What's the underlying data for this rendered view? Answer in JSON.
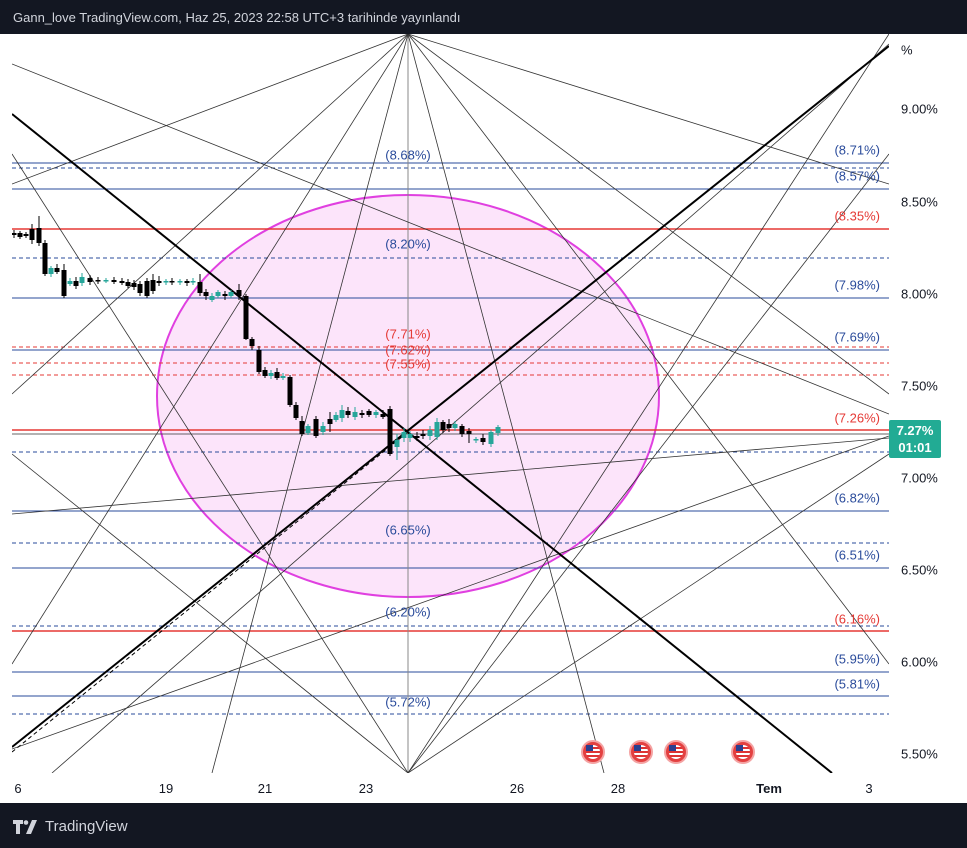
{
  "header": {
    "title": "Gann_love TradingView.com, Haz 25, 2023 22:58 UTC+3 tarihinde yayınlandı"
  },
  "footer": {
    "brand": "TradingView",
    "logo_icon": "tradingview-logo-icon"
  },
  "price_axis": {
    "unit_label": "%",
    "ticks": [
      "9.00%",
      "8.50%",
      "8.00%",
      "7.50%",
      "7.00%",
      "6.50%",
      "6.00%",
      "5.50%"
    ]
  },
  "time_axis": {
    "ticks": [
      "6",
      "19",
      "21",
      "23",
      "26",
      "28",
      "Tem",
      "3"
    ]
  },
  "last_price": {
    "value": "7.27%",
    "countdown": "01:01",
    "color": "#22ab94"
  },
  "levels": {
    "center_column": [
      "(8.68%)",
      "(8.20%)",
      "(7.71%)",
      "(7.62%)",
      "(7.55%)",
      "(6.65%)",
      "(6.20%)",
      "(5.72%)"
    ],
    "right_column": [
      "(8.71%)",
      "(8.57%)",
      "(8.35%)",
      "(7.98%)",
      "(7.69%)",
      "(7.26%)",
      "(6.82%)",
      "(6.51%)",
      "(6.16%)",
      "(5.95%)",
      "(5.81%)"
    ]
  },
  "events": {
    "icon": "us-flag-icon",
    "count": 4
  },
  "colors": {
    "background_dark": "#131722",
    "blue_level": "#2a4b9b",
    "red_level": "#e53935",
    "ellipse_stroke": "#e040e0",
    "ellipse_fill": "#fce4fa",
    "candle_up": "#26a69a",
    "candle_down": "#000000"
  }
}
